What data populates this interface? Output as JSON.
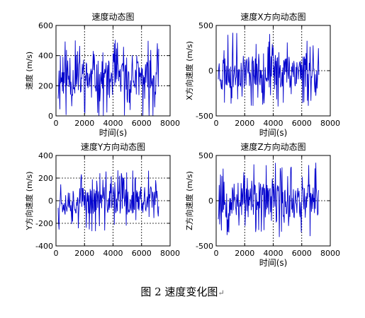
{
  "caption": {
    "text": "图 2  速度变化图",
    "mark": "↵"
  },
  "colors": {
    "line": "#0000cc",
    "axis": "#000000",
    "grid": "#000000",
    "background": "#ffffff"
  },
  "chart_data": [
    {
      "type": "line",
      "title": "速度动态图",
      "xlabel": "时间(s)",
      "ylabel": "速度 (m/s)",
      "xlim": [
        0,
        8000
      ],
      "ylim": [
        0,
        600
      ],
      "xticks": [
        0,
        2000,
        4000,
        6000,
        8000
      ],
      "yticks": [
        0,
        200,
        400,
        600
      ],
      "grid": true,
      "x_range": [
        150,
        7200
      ],
      "baseline": 250,
      "amplitude": 260,
      "seed": 11,
      "series": [
        {
          "name": "",
          "x_end": 7200
        }
      ]
    },
    {
      "type": "line",
      "title": "速度X方向动态图",
      "xlabel": "时间(s)",
      "ylabel": "X方向速度 (m/s)",
      "xlim": [
        0,
        8000
      ],
      "ylim": [
        -500,
        500
      ],
      "xticks": [
        0,
        2000,
        4000,
        6000,
        8000
      ],
      "yticks": [
        -500,
        0,
        500
      ],
      "grid": true,
      "x_range": [
        150,
        7200
      ],
      "baseline": 0,
      "amplitude": 420,
      "seed": 23,
      "series": [
        {
          "name": ""
        }
      ]
    },
    {
      "type": "line",
      "title": "速度Y方向动态图",
      "xlabel": "",
      "ylabel": "Y方向速度 (m/s)",
      "xlim": [
        0,
        8000
      ],
      "ylim": [
        -400,
        400
      ],
      "xticks": [
        0,
        2000,
        4000,
        6000,
        8000
      ],
      "yticks": [
        -400,
        -200,
        0,
        200,
        400
      ],
      "grid": true,
      "x_range": [
        150,
        7200
      ],
      "baseline": 0,
      "amplitude": 280,
      "seed": 37,
      "series": [
        {
          "name": ""
        }
      ]
    },
    {
      "type": "line",
      "title": "速度Z方向动态图",
      "xlabel": "时间(s)",
      "ylabel": "Z方向速度 (m/s)",
      "xlim": [
        0,
        8000
      ],
      "ylim": [
        -500,
        500
      ],
      "xticks": [
        0,
        2000,
        4000,
        6000,
        8000
      ],
      "yticks": [
        -500,
        0,
        500
      ],
      "grid": true,
      "x_range": [
        150,
        7200
      ],
      "baseline": 0,
      "amplitude": 420,
      "seed": 53,
      "series": [
        {
          "name": ""
        }
      ]
    }
  ]
}
